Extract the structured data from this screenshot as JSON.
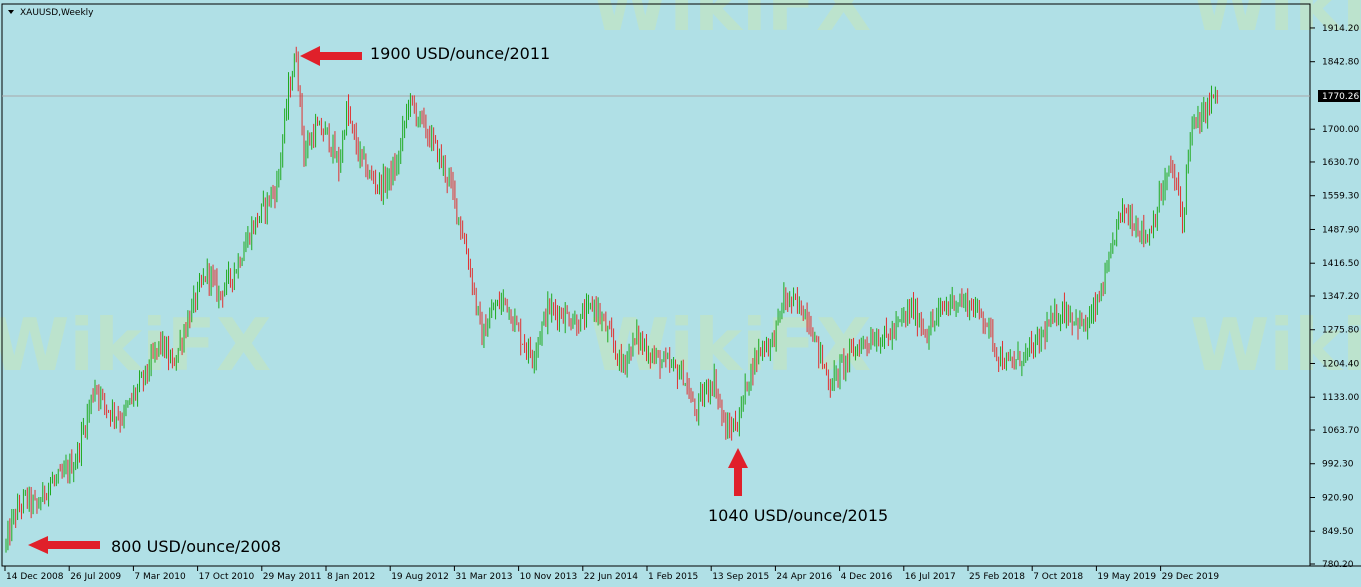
{
  "chart_window": {
    "title": "XAUUSD,Weekly",
    "watermark_text": "WikiFX"
  },
  "colors": {
    "background": "#b0e0e6",
    "bull": "#1faa1f",
    "bear": "#e03030",
    "arrow": "#e0202a",
    "current_line": "#a9a9a9"
  },
  "chart_data": {
    "type": "bar",
    "symbol": "XAUUSD",
    "timeframe": "Weekly",
    "title": "XAUUSD,Weekly",
    "xlabel": "",
    "ylabel": "",
    "ylim": [
      780.2,
      1950
    ],
    "grid": false,
    "current_price": 1770.26,
    "current_price_label": "1770.26",
    "y_ticks": [
      "1914.20",
      "1842.80",
      "1770.26",
      "1700.00",
      "1630.70",
      "1559.30",
      "1487.90",
      "1416.50",
      "1347.20",
      "1275.80",
      "1204.40",
      "1133.00",
      "1063.70",
      "992.30",
      "920.90",
      "849.50",
      "780.20"
    ],
    "x_ticks": [
      "14 Dec 2008",
      "26 Jul 2009",
      "7 Mar 2010",
      "17 Oct 2010",
      "29 May 2011",
      "8 Jan 2012",
      "19 Aug 2012",
      "31 Mar 2013",
      "10 Nov 2013",
      "22 Jun 2014",
      "1 Feb 2015",
      "13 Sep 2015",
      "24 Apr 2016",
      "4 Dec 2016",
      "16 Jul 2017",
      "25 Feb 2018",
      "7 Oct 2018",
      "19 May 2019",
      "29 Dec 2019"
    ],
    "price_path": [
      {
        "t": 0,
        "price": 820
      },
      {
        "t": 4,
        "price": 880
      },
      {
        "t": 10,
        "price": 920
      },
      {
        "t": 16,
        "price": 900
      },
      {
        "t": 22,
        "price": 950
      },
      {
        "t": 28,
        "price": 960
      },
      {
        "t": 36,
        "price": 1000
      },
      {
        "t": 46,
        "price": 1160
      },
      {
        "t": 52,
        "price": 1110
      },
      {
        "t": 60,
        "price": 1090
      },
      {
        "t": 72,
        "price": 1180
      },
      {
        "t": 80,
        "price": 1250
      },
      {
        "t": 86,
        "price": 1200
      },
      {
        "t": 96,
        "price": 1320
      },
      {
        "t": 104,
        "price": 1400
      },
      {
        "t": 110,
        "price": 1350
      },
      {
        "t": 118,
        "price": 1400
      },
      {
        "t": 126,
        "price": 1480
      },
      {
        "t": 134,
        "price": 1540
      },
      {
        "t": 140,
        "price": 1580
      },
      {
        "t": 146,
        "price": 1780
      },
      {
        "t": 150,
        "price": 1860
      },
      {
        "t": 154,
        "price": 1650
      },
      {
        "t": 160,
        "price": 1700
      },
      {
        "t": 166,
        "price": 1690
      },
      {
        "t": 172,
        "price": 1620
      },
      {
        "t": 176,
        "price": 1740
      },
      {
        "t": 182,
        "price": 1650
      },
      {
        "t": 188,
        "price": 1600
      },
      {
        "t": 194,
        "price": 1580
      },
      {
        "t": 202,
        "price": 1620
      },
      {
        "t": 208,
        "price": 1760
      },
      {
        "t": 214,
        "price": 1720
      },
      {
        "t": 222,
        "price": 1660
      },
      {
        "t": 230,
        "price": 1580
      },
      {
        "t": 236,
        "price": 1480
      },
      {
        "t": 240,
        "price": 1400
      },
      {
        "t": 246,
        "price": 1260
      },
      {
        "t": 252,
        "price": 1320
      },
      {
        "t": 258,
        "price": 1340
      },
      {
        "t": 266,
        "price": 1260
      },
      {
        "t": 272,
        "price": 1220
      },
      {
        "t": 280,
        "price": 1320
      },
      {
        "t": 288,
        "price": 1310
      },
      {
        "t": 296,
        "price": 1290
      },
      {
        "t": 304,
        "price": 1330
      },
      {
        "t": 312,
        "price": 1260
      },
      {
        "t": 318,
        "price": 1200
      },
      {
        "t": 326,
        "price": 1260
      },
      {
        "t": 334,
        "price": 1220
      },
      {
        "t": 342,
        "price": 1200
      },
      {
        "t": 350,
        "price": 1180
      },
      {
        "t": 356,
        "price": 1100
      },
      {
        "t": 362,
        "price": 1150
      },
      {
        "t": 366,
        "price": 1170
      },
      {
        "t": 372,
        "price": 1060
      },
      {
        "t": 378,
        "price": 1080
      },
      {
        "t": 384,
        "price": 1180
      },
      {
        "t": 390,
        "price": 1240
      },
      {
        "t": 396,
        "price": 1250
      },
      {
        "t": 402,
        "price": 1340
      },
      {
        "t": 408,
        "price": 1330
      },
      {
        "t": 414,
        "price": 1310
      },
      {
        "t": 420,
        "price": 1230
      },
      {
        "t": 426,
        "price": 1160
      },
      {
        "t": 432,
        "price": 1200
      },
      {
        "t": 440,
        "price": 1240
      },
      {
        "t": 448,
        "price": 1260
      },
      {
        "t": 456,
        "price": 1260
      },
      {
        "t": 462,
        "price": 1290
      },
      {
        "t": 468,
        "price": 1320
      },
      {
        "t": 476,
        "price": 1270
      },
      {
        "t": 484,
        "price": 1320
      },
      {
        "t": 490,
        "price": 1340
      },
      {
        "t": 498,
        "price": 1330
      },
      {
        "t": 506,
        "price": 1300
      },
      {
        "t": 512,
        "price": 1230
      },
      {
        "t": 518,
        "price": 1200
      },
      {
        "t": 526,
        "price": 1220
      },
      {
        "t": 532,
        "price": 1240
      },
      {
        "t": 538,
        "price": 1280
      },
      {
        "t": 546,
        "price": 1320
      },
      {
        "t": 552,
        "price": 1300
      },
      {
        "t": 558,
        "price": 1280
      },
      {
        "t": 564,
        "price": 1330
      },
      {
        "t": 570,
        "price": 1410
      },
      {
        "t": 574,
        "price": 1500
      },
      {
        "t": 578,
        "price": 1530
      },
      {
        "t": 584,
        "price": 1500
      },
      {
        "t": 590,
        "price": 1470
      },
      {
        "t": 596,
        "price": 1550
      },
      {
        "t": 602,
        "price": 1620
      },
      {
        "t": 606,
        "price": 1560
      },
      {
        "t": 608,
        "price": 1500
      },
      {
        "t": 612,
        "price": 1700
      },
      {
        "t": 618,
        "price": 1720
      },
      {
        "t": 622,
        "price": 1760
      },
      {
        "t": 626,
        "price": 1770.26
      }
    ]
  },
  "annotations": [
    {
      "text": "1900 USD/ounce/2011",
      "price": 1900
    },
    {
      "text": "1040 USD/ounce/2015",
      "price": 1040
    },
    {
      "text": "800 USD/ounce/2008",
      "price": 800
    }
  ]
}
